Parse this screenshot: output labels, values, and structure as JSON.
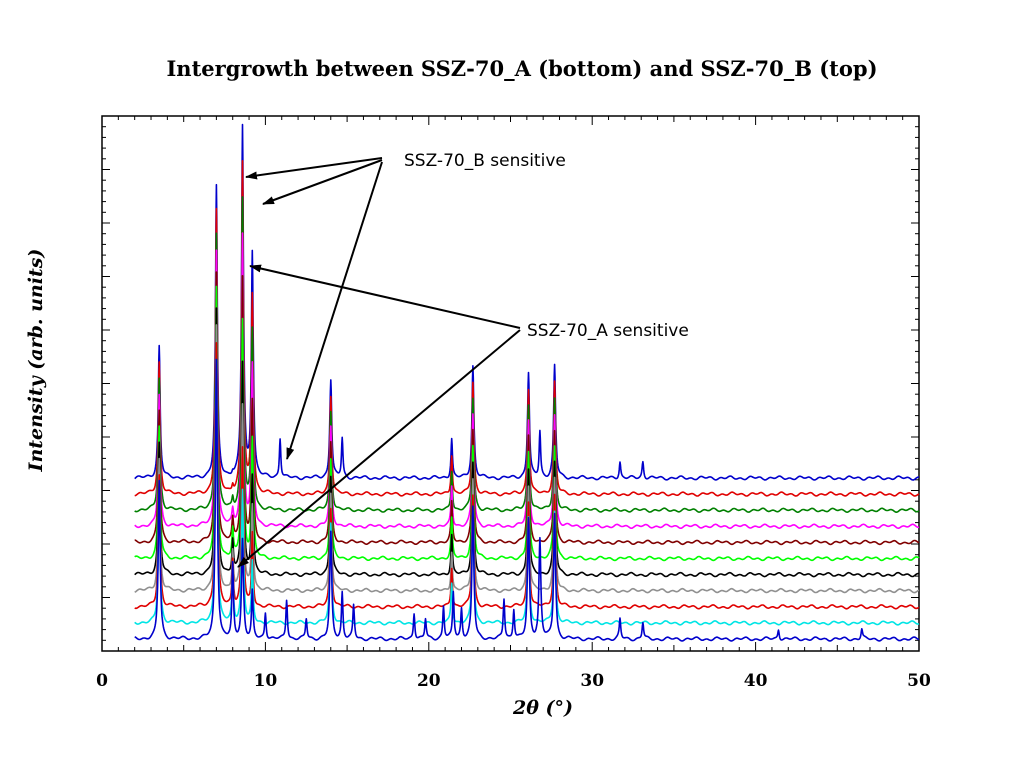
{
  "chart_data": {
    "type": "line",
    "title": "Intergrowth between SSZ-70_A (bottom) and SSZ-70_B (top)",
    "xlabel": "2θ (°)",
    "ylabel": "Intensity (arb. units)",
    "xlim": [
      0,
      50
    ],
    "x_ticks": [
      0,
      10,
      20,
      30,
      40,
      50
    ],
    "x_tick_labels": [
      "0",
      "10",
      "20",
      "30",
      "40",
      "50"
    ],
    "y_ticks_labeled": false,
    "grid": false,
    "legend": "none",
    "scan_range": [
      2,
      50
    ],
    "stack_offset": "vertical, evenly stacked",
    "series": [
      {
        "color": "#0000cc",
        "position": "bottom",
        "max_peak_height": 100,
        "peaks": [
          [
            3.5,
            48
          ],
          [
            7.0,
            85
          ],
          [
            8.0,
            22
          ],
          [
            8.6,
            30
          ],
          [
            9.2,
            14
          ],
          [
            10.0,
            8
          ],
          [
            11.3,
            12
          ],
          [
            12.5,
            6
          ],
          [
            14.0,
            32
          ],
          [
            14.7,
            14
          ],
          [
            15.4,
            10
          ],
          [
            19.1,
            8
          ],
          [
            19.8,
            6
          ],
          [
            20.9,
            10
          ],
          [
            21.5,
            14
          ],
          [
            22.0,
            9
          ],
          [
            22.7,
            40
          ],
          [
            24.6,
            12
          ],
          [
            25.2,
            9
          ],
          [
            26.1,
            36
          ],
          [
            26.8,
            30
          ],
          [
            27.7,
            38
          ],
          [
            31.7,
            6
          ],
          [
            33.1,
            5
          ],
          [
            41.4,
            3
          ],
          [
            46.5,
            3
          ]
        ]
      },
      {
        "color": "#00e5e5",
        "peaks": [
          [
            3.5,
            40
          ],
          [
            7.0,
            80
          ],
          [
            8.0,
            16
          ],
          [
            8.6,
            40
          ],
          [
            9.2,
            18
          ],
          [
            14.0,
            30
          ],
          [
            21.4,
            12
          ],
          [
            22.7,
            34
          ],
          [
            26.1,
            32
          ],
          [
            27.7,
            34
          ]
        ]
      },
      {
        "color": "#e00000",
        "peaks": [
          [
            3.5,
            40
          ],
          [
            7.0,
            80
          ],
          [
            8.0,
            14
          ],
          [
            8.6,
            48
          ],
          [
            9.2,
            22
          ],
          [
            14.0,
            30
          ],
          [
            21.4,
            12
          ],
          [
            22.7,
            34
          ],
          [
            26.1,
            32
          ],
          [
            27.7,
            34
          ]
        ]
      },
      {
        "color": "#909090",
        "peaks": [
          [
            3.5,
            40
          ],
          [
            7.0,
            80
          ],
          [
            8.0,
            12
          ],
          [
            8.6,
            56
          ],
          [
            9.2,
            26
          ],
          [
            14.0,
            30
          ],
          [
            21.4,
            12
          ],
          [
            22.7,
            34
          ],
          [
            26.1,
            32
          ],
          [
            27.7,
            34
          ]
        ]
      },
      {
        "color": "#000000",
        "peaks": [
          [
            3.5,
            40
          ],
          [
            7.0,
            80
          ],
          [
            8.0,
            10
          ],
          [
            8.6,
            64
          ],
          [
            9.2,
            30
          ],
          [
            14.0,
            30
          ],
          [
            21.4,
            12
          ],
          [
            22.7,
            34
          ],
          [
            26.1,
            32
          ],
          [
            27.7,
            34
          ]
        ]
      },
      {
        "color": "#00ff00",
        "peaks": [
          [
            3.5,
            40
          ],
          [
            7.0,
            82
          ],
          [
            8.0,
            8
          ],
          [
            8.6,
            72
          ],
          [
            9.2,
            36
          ],
          [
            14.0,
            30
          ],
          [
            21.4,
            12
          ],
          [
            22.7,
            34
          ],
          [
            26.1,
            32
          ],
          [
            27.7,
            34
          ]
        ]
      },
      {
        "color": "#800000",
        "peaks": [
          [
            3.5,
            40
          ],
          [
            7.0,
            82
          ],
          [
            8.0,
            6
          ],
          [
            8.6,
            80
          ],
          [
            9.2,
            42
          ],
          [
            14.0,
            30
          ],
          [
            21.4,
            12
          ],
          [
            22.7,
            34
          ],
          [
            26.1,
            32
          ],
          [
            27.7,
            34
          ]
        ]
      },
      {
        "color": "#ff00ff",
        "peaks": [
          [
            3.5,
            40
          ],
          [
            7.0,
            84
          ],
          [
            8.0,
            4
          ],
          [
            8.6,
            88
          ],
          [
            9.2,
            48
          ],
          [
            14.0,
            30
          ],
          [
            21.4,
            12
          ],
          [
            22.7,
            34
          ],
          [
            26.1,
            32
          ],
          [
            27.7,
            34
          ]
        ]
      },
      {
        "color": "#008000",
        "peaks": [
          [
            3.5,
            40
          ],
          [
            7.0,
            84
          ],
          [
            8.0,
            3
          ],
          [
            8.6,
            94
          ],
          [
            9.2,
            54
          ],
          [
            14.0,
            30
          ],
          [
            21.4,
            12
          ],
          [
            22.7,
            34
          ],
          [
            26.1,
            32
          ],
          [
            27.7,
            34
          ]
        ]
      },
      {
        "color": "#e00000",
        "peaks": [
          [
            3.5,
            40
          ],
          [
            7.0,
            86
          ],
          [
            8.0,
            2
          ],
          [
            8.6,
            100
          ],
          [
            9.2,
            60
          ],
          [
            14.0,
            30
          ],
          [
            21.4,
            12
          ],
          [
            22.7,
            34
          ],
          [
            26.1,
            32
          ],
          [
            27.7,
            34
          ]
        ]
      },
      {
        "color": "#0000cc",
        "position": "top",
        "peaks": [
          [
            3.5,
            40
          ],
          [
            7.0,
            88
          ],
          [
            8.0,
            1
          ],
          [
            8.6,
            106
          ],
          [
            9.2,
            68
          ],
          [
            10.9,
            12
          ],
          [
            14.0,
            30
          ],
          [
            14.7,
            12
          ],
          [
            21.4,
            12
          ],
          [
            22.7,
            34
          ],
          [
            26.1,
            32
          ],
          [
            26.8,
            14
          ],
          [
            27.7,
            34
          ],
          [
            31.7,
            5
          ],
          [
            33.1,
            5
          ]
        ]
      }
    ],
    "annotations": [
      {
        "text": "SSZ-70_B sensitive",
        "points_to_2theta": [
          8.6,
          9.3,
          11.3
        ]
      },
      {
        "text": "SSZ-70_A sensitive",
        "points_to_2theta": [
          9.0,
          8.0
        ]
      }
    ]
  }
}
